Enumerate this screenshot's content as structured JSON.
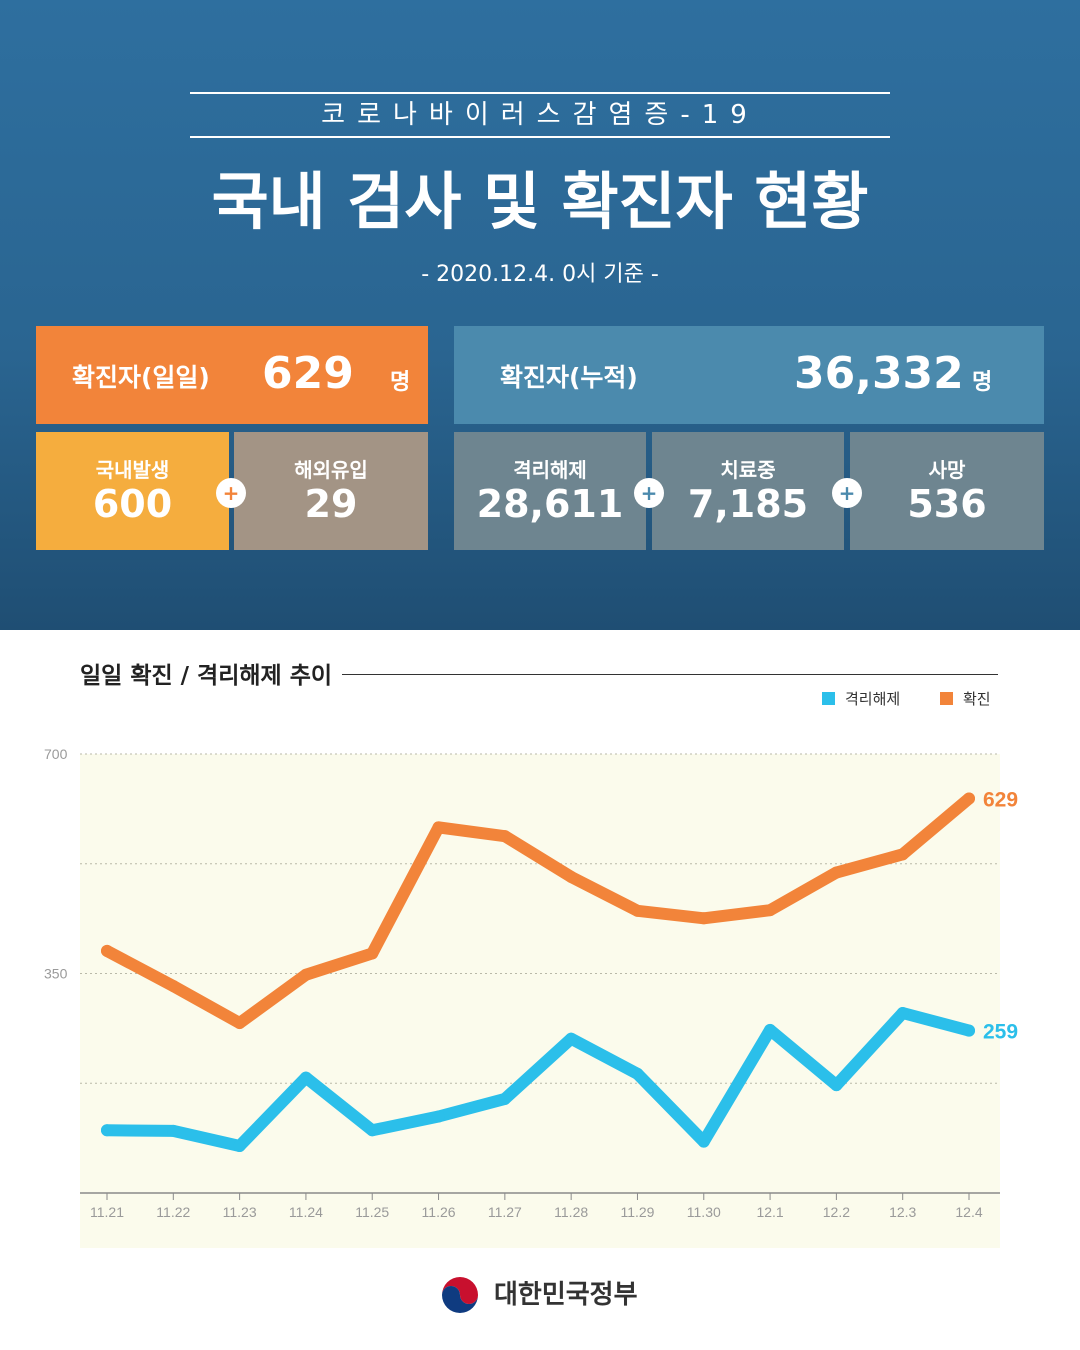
{
  "header": {
    "supertitle": "코로나바이러스감염증-19",
    "title": "국내 검사 및 확진자 현황",
    "subtitle": "- 2020.12.4. 0시 기준 -"
  },
  "summary": {
    "daily": {
      "label": "확진자(일일)",
      "value": "629",
      "unit": "명"
    },
    "cumulative": {
      "label": "확진자(누적)",
      "value": "36,332",
      "unit": "명"
    },
    "domestic": {
      "label": "국내발생",
      "value": "600"
    },
    "overseas": {
      "label": "해외유입",
      "value": "29"
    },
    "released": {
      "label": "격리해제",
      "value": "28,611"
    },
    "treatment": {
      "label": "치료중",
      "value": "7,185"
    },
    "deaths": {
      "label": "사망",
      "value": "536"
    },
    "plus_symbol": "+"
  },
  "colors": {
    "orange": "#f2843a",
    "cyan": "#2bbfea",
    "plot_bg": "#fbfbec"
  },
  "footer": {
    "text": "대한민국정부",
    "emblem": "taegeuk-emblem-icon"
  },
  "chart_data": {
    "type": "line",
    "title": "일일 확진 / 격리해제 추이",
    "x": [
      "11.21",
      "11.22",
      "11.23",
      "11.24",
      "11.25",
      "11.26",
      "11.27",
      "11.28",
      "11.29",
      "11.30",
      "12.1",
      "12.2",
      "12.3",
      "12.4"
    ],
    "ylim": [
      0,
      700
    ],
    "yticks": [
      "700",
      "350"
    ],
    "grid": true,
    "legend_position": "top-right",
    "series": [
      {
        "name": "격리해제",
        "color": "#2bbfea",
        "values": [
          100,
          99,
          75,
          184,
          100,
          122,
          150,
          246,
          190,
          82,
          260,
          172,
          287,
          259
        ],
        "end_label": "259"
      },
      {
        "name": "확진",
        "color": "#f2843a",
        "values": [
          386,
          330,
          271,
          348,
          382,
          583,
          569,
          504,
          450,
          438,
          451,
          511,
          540,
          629
        ],
        "end_label": "629"
      }
    ]
  }
}
